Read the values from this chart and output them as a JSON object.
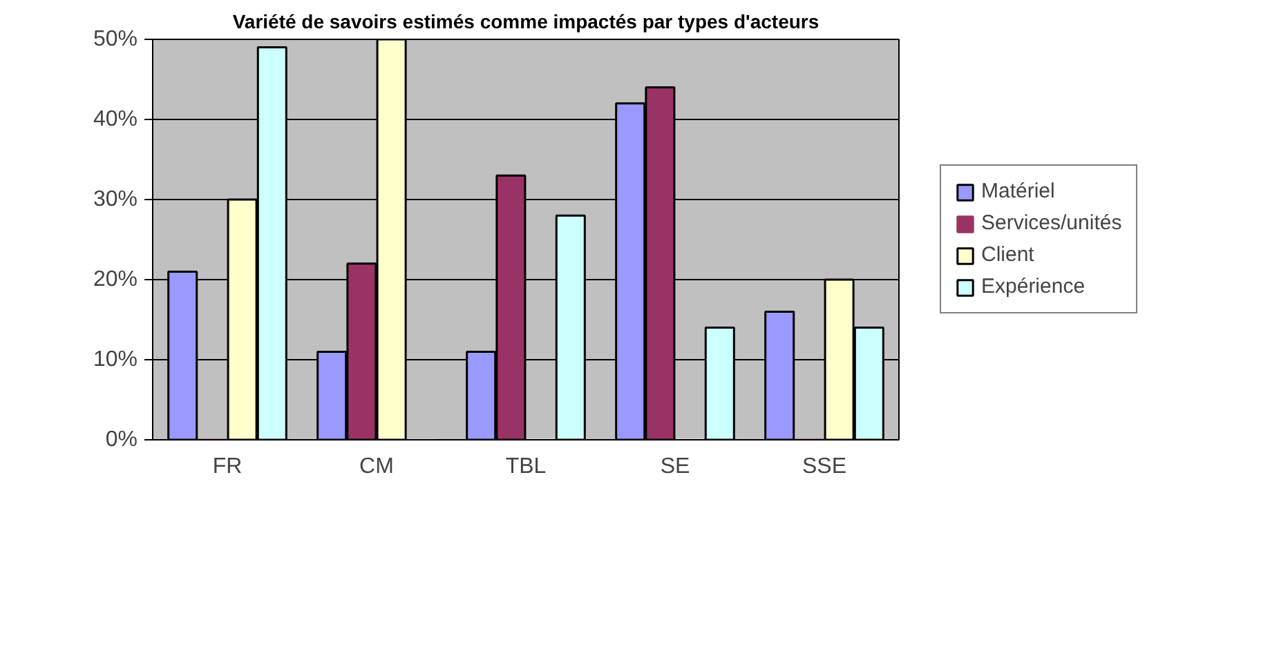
{
  "chart_data": {
    "type": "bar",
    "title": "Variété de savoirs estimés comme impactés par types d'acteurs",
    "categories": [
      "FR",
      "CM",
      "TBL",
      "SE",
      "SSE"
    ],
    "series": [
      {
        "name": "Matériel",
        "color": "#9999ff",
        "values": [
          21,
          11,
          11,
          42,
          16
        ]
      },
      {
        "name": "Services/unités",
        "color": "#993366",
        "values": [
          0,
          22,
          33,
          44,
          0
        ]
      },
      {
        "name": "Client",
        "color": "#ffffcc",
        "values": [
          30,
          50,
          0,
          0,
          20
        ]
      },
      {
        "name": "Expérience",
        "color": "#ccffff",
        "values": [
          49,
          0,
          28,
          14,
          14
        ]
      }
    ],
    "ylim": [
      0,
      50
    ],
    "yticks": [
      {
        "value": 0,
        "label": "0%"
      },
      {
        "value": 10,
        "label": "10%"
      },
      {
        "value": 20,
        "label": "20%"
      },
      {
        "value": 30,
        "label": "30%"
      },
      {
        "value": 40,
        "label": "40%"
      },
      {
        "value": 50,
        "label": "50%"
      }
    ],
    "grid": "y",
    "legend": "right"
  }
}
